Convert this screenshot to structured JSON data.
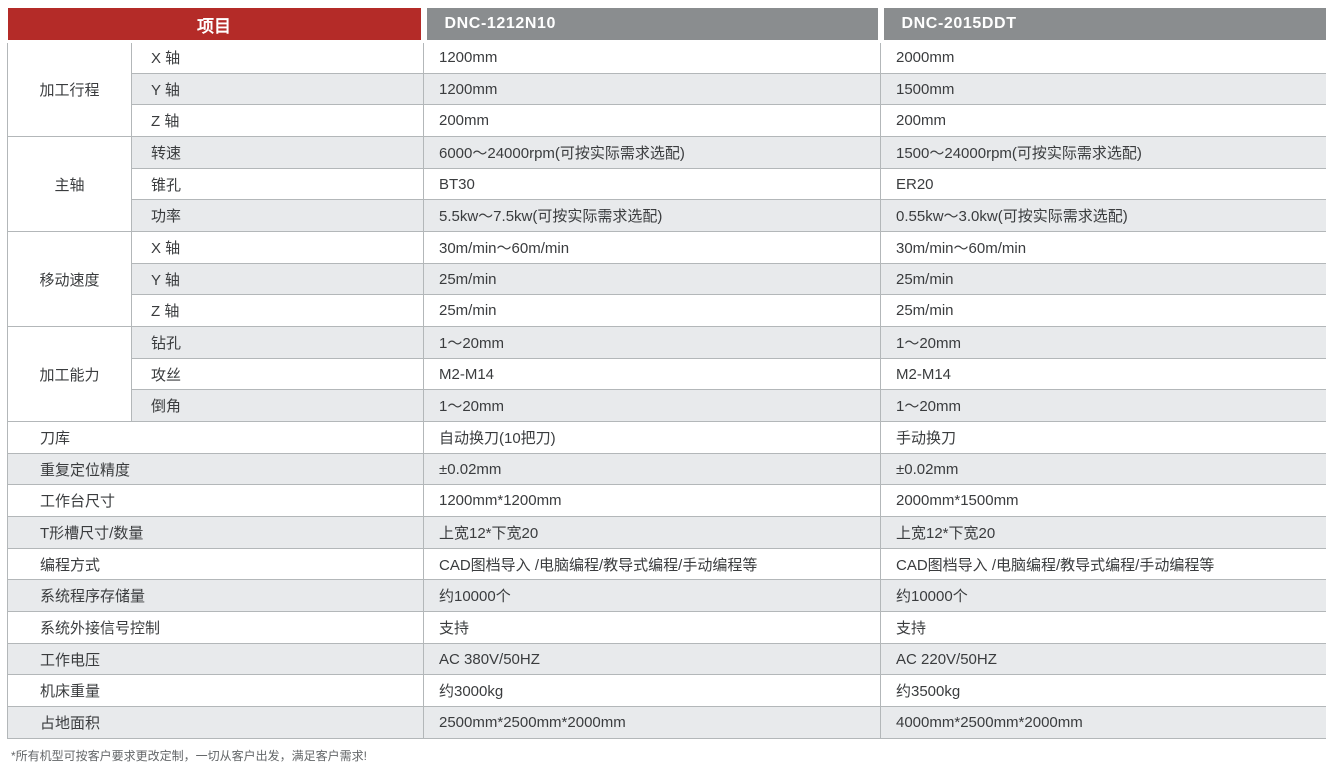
{
  "colors": {
    "accent_red": "#b42b28",
    "model_header_gray": "#8a8d8f",
    "stripe_gray": "#e8eaec",
    "border_gray": "#b3b7b9",
    "text_dark": "#3a3c3e"
  },
  "table": {
    "header": {
      "item_label": "项目",
      "models": [
        "DNC-1212N10",
        "DNC-2015DDT"
      ]
    },
    "sections": [
      {
        "group": "加工行程",
        "rows": [
          [
            "X 轴",
            "1200mm",
            "2000mm"
          ],
          [
            "Y 轴",
            "1200mm",
            "1500mm"
          ],
          [
            "Z 轴",
            "200mm",
            "200mm"
          ]
        ]
      },
      {
        "group": "主轴",
        "rows": [
          [
            "转速",
            "6000～24000rpm(可按实际需求选配)",
            "1500～24000rpm(可按实际需求选配)"
          ],
          [
            "锥孔",
            "BT30",
            "ER20"
          ],
          [
            "功率",
            "5.5kw～7.5kw(可按实际需求选配)",
            "0.55kw～3.0kw(可按实际需求选配)"
          ]
        ]
      },
      {
        "group": "移动速度",
        "rows": [
          [
            "X 轴",
            "30m/min～60m/min",
            "30m/min～60m/min"
          ],
          [
            "Y 轴",
            "25m/min",
            "25m/min"
          ],
          [
            "Z 轴",
            "25m/min",
            "25m/min"
          ]
        ]
      },
      {
        "group": "加工能力",
        "rows": [
          [
            "钻孔",
            "1～20mm",
            "1～20mm"
          ],
          [
            "攻丝",
            "M2-M14",
            "M2-M14"
          ],
          [
            "倒角",
            "1～20mm",
            "1～20mm"
          ]
        ]
      },
      {
        "rows": [
          [
            "刀库",
            "自动换刀(10把刀)",
            "手动换刀"
          ]
        ]
      },
      {
        "rows": [
          [
            "重复定位精度",
            "±0.02mm",
            "±0.02mm"
          ]
        ]
      },
      {
        "rows": [
          [
            "工作台尺寸",
            "1200mm*1200mm",
            "2000mm*1500mm"
          ]
        ]
      },
      {
        "rows": [
          [
            "T形槽尺寸/数量",
            "上宽12*下宽20",
            "上宽12*下宽20"
          ]
        ]
      },
      {
        "rows": [
          [
            "编程方式",
            "CAD图档导入 /电脑编程/教导式编程/手动编程等",
            "CAD图档导入 /电脑编程/教导式编程/手动编程等"
          ]
        ]
      },
      {
        "rows": [
          [
            "系统程序存储量",
            "约10000个",
            "约10000个"
          ]
        ]
      },
      {
        "rows": [
          [
            "系统外接信号控制",
            "支持",
            "支持"
          ]
        ]
      },
      {
        "rows": [
          [
            "工作电压",
            "AC 380V/50HZ",
            "AC 220V/50HZ"
          ]
        ]
      },
      {
        "rows": [
          [
            "机床重量",
            "约3000kg",
            "约3500kg"
          ]
        ]
      },
      {
        "rows": [
          [
            "占地面积",
            "2500mm*2500mm*2000mm",
            "4000mm*2500mm*2000mm"
          ]
        ]
      }
    ]
  },
  "footnote": "*所有机型可按客户要求更改定制，一切从客户出发，满足客户需求!"
}
